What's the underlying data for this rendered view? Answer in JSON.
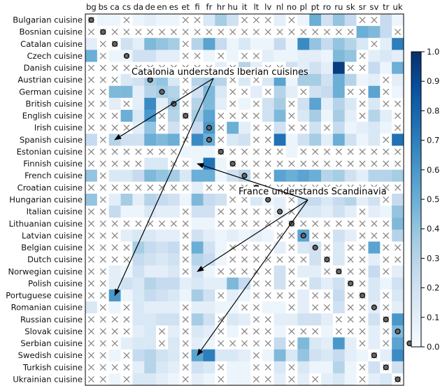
{
  "chart_data": {
    "type": "heatmap",
    "x_labels": [
      "bg",
      "bs",
      "ca",
      "cs",
      "da",
      "de",
      "en",
      "es",
      "et",
      "fi",
      "fr",
      "hr",
      "hu",
      "it",
      "lt",
      "lv",
      "nl",
      "no",
      "pl",
      "pt",
      "ro",
      "ru",
      "sk",
      "sr",
      "sv",
      "tr",
      "uk"
    ],
    "y_labels": [
      "Bulgarian cuisine",
      "Bosnian cuisine",
      "Catalan cuisine",
      "Czech cuisine",
      "Danish cuisine",
      "Austrian cuisine",
      "German cuisine",
      "British cuisine",
      "English cuisine",
      "Irish cuisine",
      "Spanish cuisine",
      "Estonian cuisine",
      "Finnish cuisine",
      "French cuisine",
      "Croatian cuisine",
      "Hungarian cuisine",
      "Italian cuisine",
      "Lithuanian cuisine",
      "Latvian cuisine",
      "Belgian cuisine",
      "Dutch cuisine",
      "Norwegian cuisine",
      "Polish cuisine",
      "Portuguese cuisine",
      "Romanian cuisine",
      "Russian cuisine",
      "Slovak cuisine",
      "Serbian cuisine",
      "Swedish cuisine",
      "Turkish cuisine",
      "Ukrainian cuisine"
    ],
    "x_positions": [
      0,
      1,
      2,
      3,
      4,
      5,
      6,
      7,
      8,
      9,
      10,
      11,
      12,
      13,
      14,
      15,
      16,
      17,
      18,
      19,
      20,
      21,
      22,
      23,
      24,
      25,
      26
    ],
    "y_positions": [
      0,
      1,
      2,
      3,
      4,
      5,
      6,
      7,
      8,
      9,
      10,
      11,
      12,
      13,
      14,
      15,
      16,
      17,
      18,
      19,
      20,
      21,
      22,
      23,
      24,
      25,
      26,
      27,
      28,
      29,
      30
    ],
    "diagonal_columns": [
      0,
      1,
      2,
      3,
      null,
      5,
      6,
      7,
      8,
      10,
      10,
      11,
      12,
      13,
      14,
      15,
      16,
      17,
      18,
      19,
      20,
      21,
      22,
      23,
      24,
      25,
      26,
      27,
      24,
      25,
      26
    ],
    "values": [
      [
        -1,
        0.05,
        0.05,
        -1,
        0.05,
        0.1,
        0.05,
        0.05,
        -1,
        -1,
        0.15,
        0.35,
        0.2,
        -1,
        -1,
        -1,
        0.1,
        -1,
        0.05,
        0.5,
        0.2,
        0.4,
        0.25,
        -1,
        -1,
        0.25,
        0.05
      ],
      [
        -1,
        -1,
        -1,
        -1,
        -1,
        -1,
        -1,
        -1,
        -1,
        -1,
        -1,
        -1,
        -1,
        -1,
        -1,
        -1,
        -1,
        -1,
        -1,
        -1,
        -1,
        -1,
        -1,
        0.5,
        0.45,
        0.25,
        -1
      ],
      [
        0.1,
        -1,
        -1,
        0.2,
        0.1,
        0.45,
        0.4,
        0.35,
        -1,
        0.3,
        0.55,
        0.25,
        0.05,
        0.15,
        0.05,
        0.05,
        0.25,
        0.05,
        0.65,
        0.4,
        0.25,
        0.4,
        0.3,
        0.15,
        -1,
        0.1,
        0.7
      ],
      [
        0.5,
        -1,
        0.05,
        0.05,
        0.2,
        0.2,
        0.1,
        0.1,
        -1,
        -1,
        0.05,
        -1,
        0.05,
        -1,
        -1,
        0.1,
        0.05,
        0.05,
        0.1,
        0.1,
        0.05,
        0.45,
        0.4,
        -1,
        0.1,
        0.15,
        0.1
      ],
      [
        -1,
        -1,
        -1,
        -1,
        -1,
        -1,
        -1,
        -1,
        -1,
        -1,
        -1,
        0.1,
        -1,
        0.3,
        0.1,
        -1,
        -1,
        0.2,
        0.1,
        0.2,
        0.1,
        0.95,
        -1,
        -1,
        0.25,
        0.05,
        0.5
      ],
      [
        -1,
        -1,
        -1,
        0.15,
        0.2,
        0.35,
        0.4,
        0.15,
        -1,
        0.3,
        0.35,
        0.3,
        -1,
        0.15,
        -1,
        0.15,
        0.55,
        0.05,
        0.35,
        0.35,
        0.2,
        0.5,
        0.3,
        0.05,
        0.1,
        -1,
        0.1
      ],
      [
        -1,
        -1,
        0.45,
        0.45,
        0.1,
        0.3,
        0.35,
        0.3,
        -1,
        0.2,
        0.45,
        0.15,
        -1,
        -1,
        0.1,
        -1,
        0.3,
        0.1,
        -1,
        0.2,
        0.25,
        0.5,
        -1,
        -1,
        0.55,
        -1,
        0.05
      ],
      [
        -1,
        -1,
        0.1,
        -1,
        0.1,
        0.65,
        0.1,
        0.35,
        -1,
        0.3,
        0.45,
        0.1,
        -1,
        0.05,
        -1,
        0.2,
        0.35,
        -1,
        0.2,
        0.55,
        0.1,
        0.3,
        0.15,
        -1,
        0.15,
        -1,
        -1
      ],
      [
        -1,
        -1,
        -1,
        0.5,
        0.15,
        0.6,
        -1,
        0.3,
        -1,
        0.35,
        0.55,
        -1,
        -1,
        -1,
        -1,
        0.2,
        0.45,
        -1,
        0.15,
        0.35,
        0.05,
        0.35,
        0.1,
        -1,
        0.3,
        0.1,
        -1
      ],
      [
        -1,
        -1,
        -1,
        -1,
        0.1,
        0.4,
        -1,
        0.2,
        -1,
        0.25,
        0.6,
        -1,
        0.5,
        0.1,
        -1,
        -1,
        0.2,
        -1,
        -1,
        0.2,
        -1,
        0.25,
        0.05,
        0.1,
        0.15,
        0.05,
        -1
      ],
      [
        0.25,
        -1,
        0.3,
        0.2,
        0.2,
        0.5,
        0.45,
        0.5,
        -1,
        0.65,
        0.5,
        -1,
        0.15,
        0.2,
        -1,
        -1,
        0.75,
        0.05,
        0.2,
        0.35,
        0.1,
        0.5,
        0.2,
        0.05,
        0.15,
        -1,
        0.75
      ],
      [
        -1,
        -1,
        -1,
        -1,
        -1,
        -1,
        -1,
        -1,
        0.05,
        0.05,
        0.05,
        -1,
        -1,
        -1,
        -1,
        -1,
        -1,
        0.05,
        -1,
        -1,
        -1,
        -1,
        -1,
        -1,
        -1,
        -1,
        -1
      ],
      [
        -1,
        -1,
        -1,
        -1,
        -1,
        0.15,
        0.15,
        -1,
        -1,
        0.05,
        0.75,
        0.05,
        -1,
        -1,
        -1,
        -1,
        -1,
        -1,
        -1,
        -1,
        -1,
        -1,
        -1,
        -1,
        -1,
        -1,
        -1
      ],
      [
        0.4,
        -1,
        0.15,
        0.15,
        0.25,
        0.45,
        0.4,
        0.35,
        0.15,
        0.5,
        0.5,
        0.05,
        0.2,
        0.3,
        -1,
        -1,
        0.55,
        0.5,
        0.55,
        0.5,
        0.3,
        0.35,
        0.2,
        0.1,
        0.3,
        0.3,
        0.35
      ],
      [
        -1,
        -1,
        -1,
        -1,
        -1,
        -1,
        -1,
        -1,
        -1,
        0.1,
        -1,
        -1,
        -1,
        -1,
        -1,
        -1,
        -1,
        -1,
        -1,
        -1,
        -1,
        -1,
        -1,
        -1,
        -1,
        -1,
        -1
      ],
      [
        0.4,
        -1,
        0.1,
        0.35,
        0.1,
        0.3,
        0.25,
        0.2,
        0.05,
        0.45,
        0.25,
        0.2,
        -1,
        -1,
        0.15,
        0.05,
        0.1,
        -1,
        0.25,
        0.25,
        0.15,
        0.25,
        0.3,
        0.1,
        0.2,
        -1,
        0.25
      ],
      [
        -1,
        -1,
        0.25,
        0.05,
        0.05,
        0.15,
        0.1,
        0.1,
        -1,
        0.2,
        0.2,
        -1,
        -1,
        -1,
        -1,
        -1,
        0.1,
        -1,
        0.15,
        0.15,
        0.1,
        0.2,
        0.1,
        -1,
        0.1,
        0.05,
        0.4
      ],
      [
        -1,
        -1,
        -1,
        -1,
        -1,
        -1,
        -1,
        -1,
        -1,
        0.05,
        0.05,
        -1,
        -1,
        -1,
        -1,
        -1,
        -1,
        -1,
        -1,
        -1,
        -1,
        -1,
        -1,
        -1,
        -1,
        -1,
        0.45
      ],
      [
        -1,
        -1,
        -1,
        0.1,
        0.15,
        0.15,
        0.1,
        0.1,
        -1,
        0.2,
        0.1,
        0.05,
        0.1,
        0.05,
        0.1,
        0.05,
        -1,
        -1,
        0.55,
        -1,
        -1,
        0.2,
        0.1,
        -1,
        -1,
        -1,
        0.3
      ],
      [
        -1,
        -1,
        -1,
        -1,
        0.35,
        0.25,
        0.2,
        0.25,
        -1,
        0.5,
        0.2,
        0.05,
        -1,
        -1,
        -1,
        -1,
        0.1,
        -1,
        0.15,
        0.2,
        -1,
        0.15,
        -1,
        -1,
        0.55,
        -1,
        -1
      ],
      [
        -1,
        -1,
        -1,
        -1,
        0.25,
        0.2,
        0.15,
        0.2,
        -1,
        0.3,
        0.25,
        0.05,
        -1,
        -1,
        -1,
        -1,
        -1,
        -1,
        -1,
        0.2,
        -1,
        0.15,
        -1,
        -1,
        0.1,
        -1,
        -1
      ],
      [
        -1,
        -1,
        0.1,
        0.05,
        0.2,
        0.1,
        0.1,
        0.15,
        -1,
        0.2,
        0.05,
        -1,
        -1,
        -1,
        -1,
        -1,
        0.2,
        -1,
        0.1,
        0.1,
        -1,
        -1,
        -1,
        -1,
        0.25,
        -1,
        0.1
      ],
      [
        -1,
        -1,
        0.1,
        0.2,
        0.15,
        0.3,
        0.25,
        0.25,
        0.1,
        0.15,
        0.1,
        0.1,
        0.45,
        0.25,
        -1,
        -1,
        0.2,
        -1,
        -1,
        0.2,
        0.1,
        0.2,
        -1,
        -1,
        0.15,
        0.05,
        0.2
      ],
      [
        -1,
        -1,
        0.6,
        0.05,
        0.15,
        0.25,
        0.2,
        0.15,
        0.05,
        0.35,
        0.2,
        -1,
        0.1,
        0.05,
        -1,
        -1,
        -1,
        -1,
        0.1,
        -1,
        -1,
        0.25,
        -1,
        -1,
        0.15,
        -1,
        0.15
      ],
      [
        0.15,
        -1,
        0.05,
        -1,
        0.15,
        0.1,
        0.1,
        0.1,
        -1,
        0.1,
        0.1,
        0.05,
        0.05,
        -1,
        -1,
        0.05,
        0.05,
        -1,
        0.1,
        -1,
        -1,
        0.2,
        -1,
        -1,
        0.1,
        -1,
        0.1
      ],
      [
        -1,
        -1,
        -1,
        -1,
        0.15,
        0.15,
        0.2,
        0.2,
        -1,
        0.35,
        0.2,
        -1,
        0.15,
        0.1,
        -1,
        -1,
        0.1,
        0.1,
        0.2,
        0.2,
        0.1,
        -1,
        -1,
        -1,
        0.2,
        -1,
        0.6
      ],
      [
        -1,
        -1,
        -1,
        -1,
        0.1,
        0.15,
        -1,
        0.1,
        -1,
        0.15,
        0.1,
        -1,
        0.05,
        -1,
        -1,
        -1,
        0.05,
        -1,
        -1,
        -1,
        0.05,
        -1,
        -1,
        -1,
        0.1,
        -1,
        0.45
      ],
      [
        -1,
        -1,
        -1,
        0.1,
        0.15,
        0.15,
        -1,
        0.15,
        -1,
        0.1,
        0.05,
        -1,
        -1,
        -1,
        -1,
        -1,
        0.25,
        -1,
        0.45,
        0.15,
        0.1,
        0.6,
        0.1,
        -1,
        0.1,
        -1,
        0.55
      ],
      [
        -1,
        -1,
        0.05,
        -1,
        0.25,
        0.3,
        0.2,
        0.15,
        -1,
        0.55,
        0.7,
        0.15,
        0.15,
        0.1,
        -1,
        0.05,
        0.45,
        0.15,
        0.4,
        0.2,
        0.15,
        0.25,
        0.1,
        0.05,
        -1,
        0.1,
        0.65
      ],
      [
        -1,
        -1,
        -1,
        -1,
        0.1,
        0.3,
        0.15,
        0.1,
        -1,
        0.2,
        0.15,
        -1,
        0.05,
        0.05,
        -1,
        -1,
        0.15,
        -1,
        0.15,
        0.05,
        0.05,
        0.3,
        0.05,
        -1,
        0.2,
        -1,
        0.2
      ],
      [
        -1,
        -1,
        0.05,
        -1,
        0.15,
        0.15,
        0.1,
        0.05,
        -1,
        0.1,
        0.05,
        -1,
        0.05,
        0.05,
        -1,
        -1,
        0.1,
        -1,
        0.1,
        -1,
        0.1,
        0.15,
        0.05,
        -1,
        0.1,
        0.15,
        -1
      ]
    ],
    "colorbar": {
      "min": 0,
      "max": 1,
      "ticks": [
        "0.0",
        "0.1",
        "0.2",
        "0.3",
        "0.4",
        "0.5",
        "0.6",
        "0.7",
        "0.8",
        "0.9",
        "1.0"
      ]
    },
    "annotations": [
      {
        "text": "Catalonia understands Iberian cuisines",
        "targets": [
          {
            "x": 2,
            "y": 10
          },
          {
            "x": 2,
            "y": 23
          }
        ]
      },
      {
        "text": "France understands Scandinavia",
        "targets": [
          {
            "x": 9,
            "y": 12
          },
          {
            "x": 9,
            "y": 21
          },
          {
            "x": 9,
            "y": 28
          }
        ]
      }
    ]
  }
}
